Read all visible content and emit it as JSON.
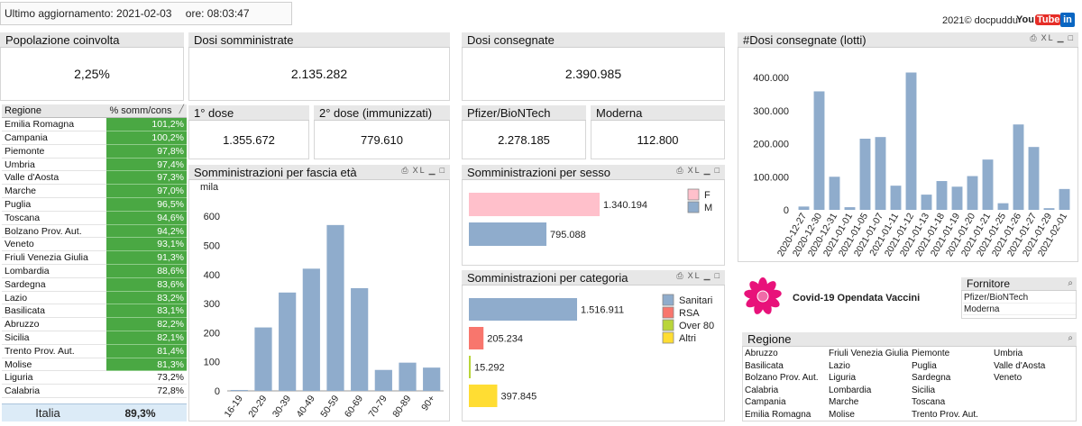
{
  "header": {
    "last_update_label": "Ultimo aggiornamento: 2021-02-03",
    "time_label": "ore: 08:03:47",
    "copyright": "2021© docpuddu",
    "youtube_label": "You",
    "youtube_tube": "Tube",
    "linkedin_label": "in"
  },
  "kpi": {
    "popolazione": {
      "title": "Popolazione coinvolta",
      "value": "2,25%"
    },
    "somministrate": {
      "title": "Dosi somministrate",
      "value": "2.135.282"
    },
    "consegnate": {
      "title": "Dosi consegnate",
      "value": "2.390.985"
    },
    "dose1": {
      "title": "1° dose",
      "value": "1.355.672"
    },
    "dose2": {
      "title": "2° dose (immunizzati)",
      "value": "779.610"
    },
    "pfizer": {
      "title": "Pfizer/BioNTech",
      "value": "2.278.185"
    },
    "moderna": {
      "title": "Moderna",
      "value": "112.800"
    }
  },
  "region_table": {
    "col1": "Regione",
    "col2": "% somm/cons",
    "sort_icon": "sort-icon",
    "rows": [
      {
        "name": "Emilia Romagna",
        "value": "101,2%",
        "highlight": true
      },
      {
        "name": "Campania",
        "value": "100,2%",
        "highlight": true
      },
      {
        "name": "Piemonte",
        "value": "97,8%",
        "highlight": true
      },
      {
        "name": "Umbria",
        "value": "97,4%",
        "highlight": true
      },
      {
        "name": "Valle d'Aosta",
        "value": "97,3%",
        "highlight": true
      },
      {
        "name": "Marche",
        "value": "97,0%",
        "highlight": true
      },
      {
        "name": "Puglia",
        "value": "96,5%",
        "highlight": true
      },
      {
        "name": "Toscana",
        "value": "94,6%",
        "highlight": true
      },
      {
        "name": "Bolzano Prov. Aut.",
        "value": "94,2%",
        "highlight": true
      },
      {
        "name": "Veneto",
        "value": "93,1%",
        "highlight": true
      },
      {
        "name": "Friuli Venezia Giulia",
        "value": "91,3%",
        "highlight": true
      },
      {
        "name": "Lombardia",
        "value": "88,6%",
        "highlight": true
      },
      {
        "name": "Sardegna",
        "value": "83,6%",
        "highlight": true
      },
      {
        "name": "Lazio",
        "value": "83,2%",
        "highlight": true
      },
      {
        "name": "Basilicata",
        "value": "83,1%",
        "highlight": true
      },
      {
        "name": "Abruzzo",
        "value": "82,2%",
        "highlight": true
      },
      {
        "name": "Sicilia",
        "value": "82,1%",
        "highlight": true
      },
      {
        "name": "Trento Prov. Aut.",
        "value": "81,4%",
        "highlight": true
      },
      {
        "name": "Molise",
        "value": "81,3%",
        "highlight": true
      },
      {
        "name": "Liguria",
        "value": "73,2%",
        "highlight": false
      },
      {
        "name": "Calabria",
        "value": "72,8%",
        "highlight": false
      }
    ],
    "total_label": "Italia",
    "total_value": "89,3%"
  },
  "panel_titles": {
    "eta": "Somministrazioni per fascia età",
    "sesso": "Somministrazioni per sesso",
    "categoria": "Somministrazioni per categoria",
    "lotti": "#Dosi consegnate (lotti)",
    "fornitore": "Fornitore",
    "regione": "Regione"
  },
  "caption_icons": {
    "print": "print-icon",
    "xl": "XL",
    "minimize": "minimize-icon",
    "maximize": "maximize-icon"
  },
  "brand": {
    "title": "Covid-19 Opendata Vaccini",
    "logo": "flower-logo"
  },
  "fornitore_list": [
    "Pfizer/BioNTech",
    "Moderna"
  ],
  "regione_list": [
    [
      "Abruzzo",
      "Basilicata",
      "Bolzano Prov. Aut.",
      "Calabria",
      "Campania",
      "Emilia Romagna"
    ],
    [
      "Friuli Venezia Giulia",
      "Lazio",
      "Liguria",
      "Lombardia",
      "Marche",
      "Molise"
    ],
    [
      "Piemonte",
      "Puglia",
      "Sardegna",
      "Sicilia",
      "Toscana",
      "Trento Prov. Aut."
    ],
    [
      "Umbria",
      "Valle d'Aosta",
      "Veneto"
    ]
  ],
  "colors": {
    "bar_blue": "#8faccc",
    "green_cell": "#4aa843",
    "pink": "#ffc0cb",
    "salmon": "#f8766d",
    "lime": "#b9d53a",
    "yellow": "#ffdd33",
    "brand_magenta": "#e8127a"
  },
  "chart_data": [
    {
      "type": "bar",
      "title": "Somministrazioni per fascia età",
      "ylabel": "mila",
      "categories": [
        "16-19",
        "20-29",
        "30-39",
        "40-49",
        "50-59",
        "60-69",
        "70-79",
        "80-89",
        "90+"
      ],
      "values": [
        3,
        218,
        338,
        420,
        570,
        353,
        72,
        97,
        80
      ],
      "ylim": [
        0,
        650
      ],
      "yticks": [
        0,
        100,
        200,
        300,
        400,
        500,
        600
      ]
    },
    {
      "type": "bar",
      "orientation": "horizontal",
      "title": "Somministrazioni per sesso",
      "categories": [
        "F",
        "M"
      ],
      "values": [
        1340194,
        795088
      ],
      "value_labels": [
        "1.340.194",
        "795.088"
      ],
      "colors": [
        "#ffc0cb",
        "#8faccc"
      ],
      "legend": [
        "F",
        "M"
      ]
    },
    {
      "type": "bar",
      "orientation": "horizontal",
      "title": "Somministrazioni per categoria",
      "categories": [
        "Sanitari",
        "RSA",
        "Over 80",
        "Altri"
      ],
      "values": [
        1516911,
        205234,
        15292,
        397845
      ],
      "value_labels": [
        "1.516.911",
        "205.234",
        "15.292",
        "397.845"
      ],
      "colors": [
        "#8faccc",
        "#f8766d",
        "#b9d53a",
        "#ffdd33"
      ],
      "legend": [
        "Sanitari",
        "RSA",
        "Over 80",
        "Altri"
      ]
    },
    {
      "type": "bar",
      "title": "#Dosi consegnate (lotti)",
      "categories": [
        "2020-12-27",
        "2020-12-30",
        "2020-12-31",
        "2021-01-01",
        "2021-01-05",
        "2021-01-07",
        "2021-01-11",
        "2021-01-12",
        "2021-01-13",
        "2021-01-18",
        "2021-01-19",
        "2021-01-20",
        "2021-01-21",
        "2021-01-25",
        "2021-01-26",
        "2021-01-27",
        "2021-01-29",
        "2021-02-01"
      ],
      "values": [
        10000,
        358000,
        100000,
        8000,
        215000,
        220000,
        73000,
        415000,
        46000,
        87000,
        70000,
        102000,
        152000,
        20000,
        258000,
        190000,
        5000,
        63000
      ],
      "ylim": [
        0,
        430000
      ],
      "yticks": [
        0,
        100000,
        200000,
        300000,
        400000
      ],
      "ytick_labels": [
        "0",
        "100.000",
        "200.000",
        "300.000",
        "400.000"
      ]
    }
  ]
}
